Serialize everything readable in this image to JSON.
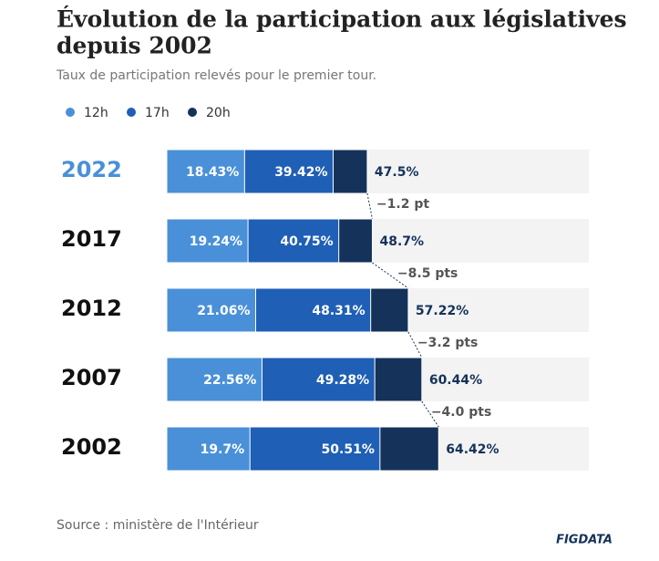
{
  "chart_data": {
    "type": "bar",
    "orientation": "horizontal",
    "title": [
      "Évolution de la participation aux législatives",
      "depuis 2002"
    ],
    "subtitle": "Taux de participation relevés pour le premier tour.",
    "categories": [
      "2022",
      "2017",
      "2012",
      "2007",
      "2002"
    ],
    "highlight_color": "#4a90d9",
    "series": [
      {
        "name": "12h",
        "color": "#4a90d9",
        "values": [
          18.43,
          19.24,
          21.06,
          22.56,
          19.7
        ],
        "value_labels": [
          "18.43%",
          "19.24%",
          "21.06%",
          "22.56%",
          "19.7%"
        ]
      },
      {
        "name": "17h",
        "color": "#1f5fb5",
        "values": [
          39.42,
          40.75,
          48.31,
          49.28,
          50.51
        ],
        "value_labels": [
          "39.42%",
          "40.75%",
          "48.31%",
          "49.28%",
          "50.51%"
        ]
      },
      {
        "name": "20h",
        "color": "#15325a",
        "values": [
          47.5,
          48.7,
          57.22,
          60.44,
          64.42
        ],
        "value_labels": [
          "47.5%",
          "48.7%",
          "57.22%",
          "60.44%",
          "64.42%"
        ]
      }
    ],
    "differences": [
      "−1.2 pt",
      "−8.5 pts",
      "−3.2 pts",
      "−4.0 pts"
    ],
    "xlim": [
      0,
      100
    ],
    "source": "Source : ministère de l'Intérieur",
    "logo": "FIGDATA"
  }
}
